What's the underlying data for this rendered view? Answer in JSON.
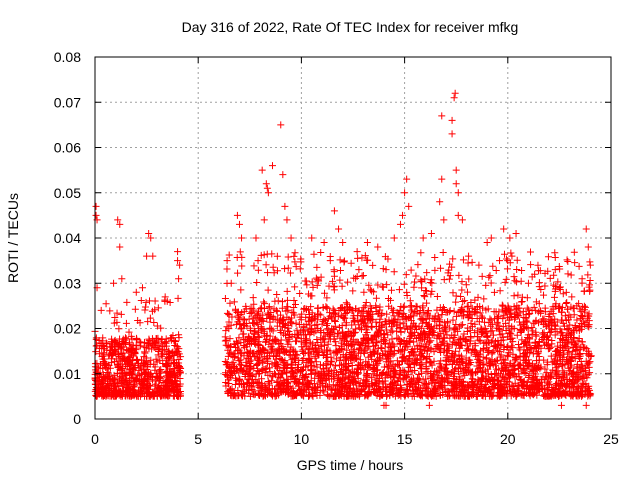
{
  "chart_data": {
    "type": "scatter",
    "title": "Day 316 of 2022, Rate Of TEC Index for receiver mfkg",
    "xlabel": "GPS time / hours",
    "ylabel": "ROTI / TECUs",
    "xlim": [
      0,
      25
    ],
    "ylim": [
      0,
      0.08
    ],
    "x_ticks": [
      "0",
      "5",
      "10",
      "15",
      "20",
      "25"
    ],
    "y_ticks": [
      "0",
      "0.01",
      "0.02",
      "0.03",
      "0.04",
      "0.05",
      "0.06",
      "0.07",
      "0.08"
    ],
    "grid": true,
    "legend": "none",
    "marker": "+",
    "color": "#ff0000",
    "series": [
      {
        "coverage_hours": [
          [
            0.0,
            4.15
          ],
          [
            6.3,
            24.05
          ]
        ],
        "baseline_roti": 0.008,
        "typical_upper_roti": 0.025,
        "notable_points": [
          {
            "x": 0.05,
            "y": 0.047
          },
          {
            "x": 0.05,
            "y": 0.045
          },
          {
            "x": 0.1,
            "y": 0.044
          },
          {
            "x": 0.1,
            "y": 0.029
          },
          {
            "x": 0.3,
            "y": 0.024
          },
          {
            "x": 1.1,
            "y": 0.044
          },
          {
            "x": 1.2,
            "y": 0.043
          },
          {
            "x": 1.2,
            "y": 0.038
          },
          {
            "x": 1.3,
            "y": 0.031
          },
          {
            "x": 0.9,
            "y": 0.03
          },
          {
            "x": 2.0,
            "y": 0.028
          },
          {
            "x": 2.5,
            "y": 0.036
          },
          {
            "x": 2.6,
            "y": 0.041
          },
          {
            "x": 2.7,
            "y": 0.04
          },
          {
            "x": 2.8,
            "y": 0.036
          },
          {
            "x": 2.3,
            "y": 0.029
          },
          {
            "x": 3.4,
            "y": 0.027
          },
          {
            "x": 3.5,
            "y": 0.026
          },
          {
            "x": 4.0,
            "y": 0.037
          },
          {
            "x": 4.0,
            "y": 0.035
          },
          {
            "x": 4.1,
            "y": 0.034
          },
          {
            "x": 4.05,
            "y": 0.031
          },
          {
            "x": 6.4,
            "y": 0.035
          },
          {
            "x": 6.6,
            "y": 0.03
          },
          {
            "x": 6.9,
            "y": 0.045
          },
          {
            "x": 7.0,
            "y": 0.043
          },
          {
            "x": 7.1,
            "y": 0.04
          },
          {
            "x": 7.8,
            "y": 0.04
          },
          {
            "x": 7.9,
            "y": 0.035
          },
          {
            "x": 8.1,
            "y": 0.055
          },
          {
            "x": 8.3,
            "y": 0.052
          },
          {
            "x": 8.35,
            "y": 0.051
          },
          {
            "x": 8.4,
            "y": 0.05
          },
          {
            "x": 8.6,
            "y": 0.056
          },
          {
            "x": 8.2,
            "y": 0.044
          },
          {
            "x": 9.0,
            "y": 0.065
          },
          {
            "x": 9.1,
            "y": 0.054
          },
          {
            "x": 9.2,
            "y": 0.047
          },
          {
            "x": 9.5,
            "y": 0.04
          },
          {
            "x": 9.3,
            "y": 0.044
          },
          {
            "x": 10.5,
            "y": 0.04
          },
          {
            "x": 11.1,
            "y": 0.039
          },
          {
            "x": 11.4,
            "y": 0.035
          },
          {
            "x": 11.6,
            "y": 0.046
          },
          {
            "x": 11.8,
            "y": 0.042
          },
          {
            "x": 12.0,
            "y": 0.039
          },
          {
            "x": 12.7,
            "y": 0.037
          },
          {
            "x": 13.2,
            "y": 0.039
          },
          {
            "x": 13.7,
            "y": 0.038
          },
          {
            "x": 14.1,
            "y": 0.033
          },
          {
            "x": 14.5,
            "y": 0.04
          },
          {
            "x": 14.8,
            "y": 0.043
          },
          {
            "x": 14.9,
            "y": 0.045
          },
          {
            "x": 15.0,
            "y": 0.05
          },
          {
            "x": 15.1,
            "y": 0.053
          },
          {
            "x": 15.2,
            "y": 0.047
          },
          {
            "x": 15.9,
            "y": 0.04
          },
          {
            "x": 16.3,
            "y": 0.041
          },
          {
            "x": 16.7,
            "y": 0.048
          },
          {
            "x": 16.8,
            "y": 0.053
          },
          {
            "x": 16.8,
            "y": 0.067
          },
          {
            "x": 16.9,
            "y": 0.044
          },
          {
            "x": 17.4,
            "y": 0.071
          },
          {
            "x": 17.45,
            "y": 0.072
          },
          {
            "x": 17.3,
            "y": 0.066
          },
          {
            "x": 17.3,
            "y": 0.063
          },
          {
            "x": 17.5,
            "y": 0.055
          },
          {
            "x": 17.5,
            "y": 0.052
          },
          {
            "x": 17.6,
            "y": 0.05
          },
          {
            "x": 17.6,
            "y": 0.045
          },
          {
            "x": 17.8,
            "y": 0.044
          },
          {
            "x": 18.1,
            "y": 0.036
          },
          {
            "x": 18.6,
            "y": 0.034
          },
          {
            "x": 19.0,
            "y": 0.039
          },
          {
            "x": 19.2,
            "y": 0.04
          },
          {
            "x": 19.6,
            "y": 0.035
          },
          {
            "x": 19.8,
            "y": 0.042
          },
          {
            "x": 20.1,
            "y": 0.04
          },
          {
            "x": 20.4,
            "y": 0.041
          },
          {
            "x": 20.2,
            "y": 0.036
          },
          {
            "x": 21.0,
            "y": 0.03
          },
          {
            "x": 21.3,
            "y": 0.032
          },
          {
            "x": 22.3,
            "y": 0.033
          },
          {
            "x": 22.5,
            "y": 0.029
          },
          {
            "x": 23.1,
            "y": 0.027
          },
          {
            "x": 23.6,
            "y": 0.031
          },
          {
            "x": 23.8,
            "y": 0.042
          },
          {
            "x": 23.9,
            "y": 0.038
          },
          {
            "x": 24.0,
            "y": 0.034
          },
          {
            "x": 14.0,
            "y": 0.003
          },
          {
            "x": 14.1,
            "y": 0.003
          },
          {
            "x": 16.2,
            "y": 0.003
          },
          {
            "x": 22.6,
            "y": 0.003
          },
          {
            "x": 23.8,
            "y": 0.003
          }
        ]
      }
    ]
  }
}
